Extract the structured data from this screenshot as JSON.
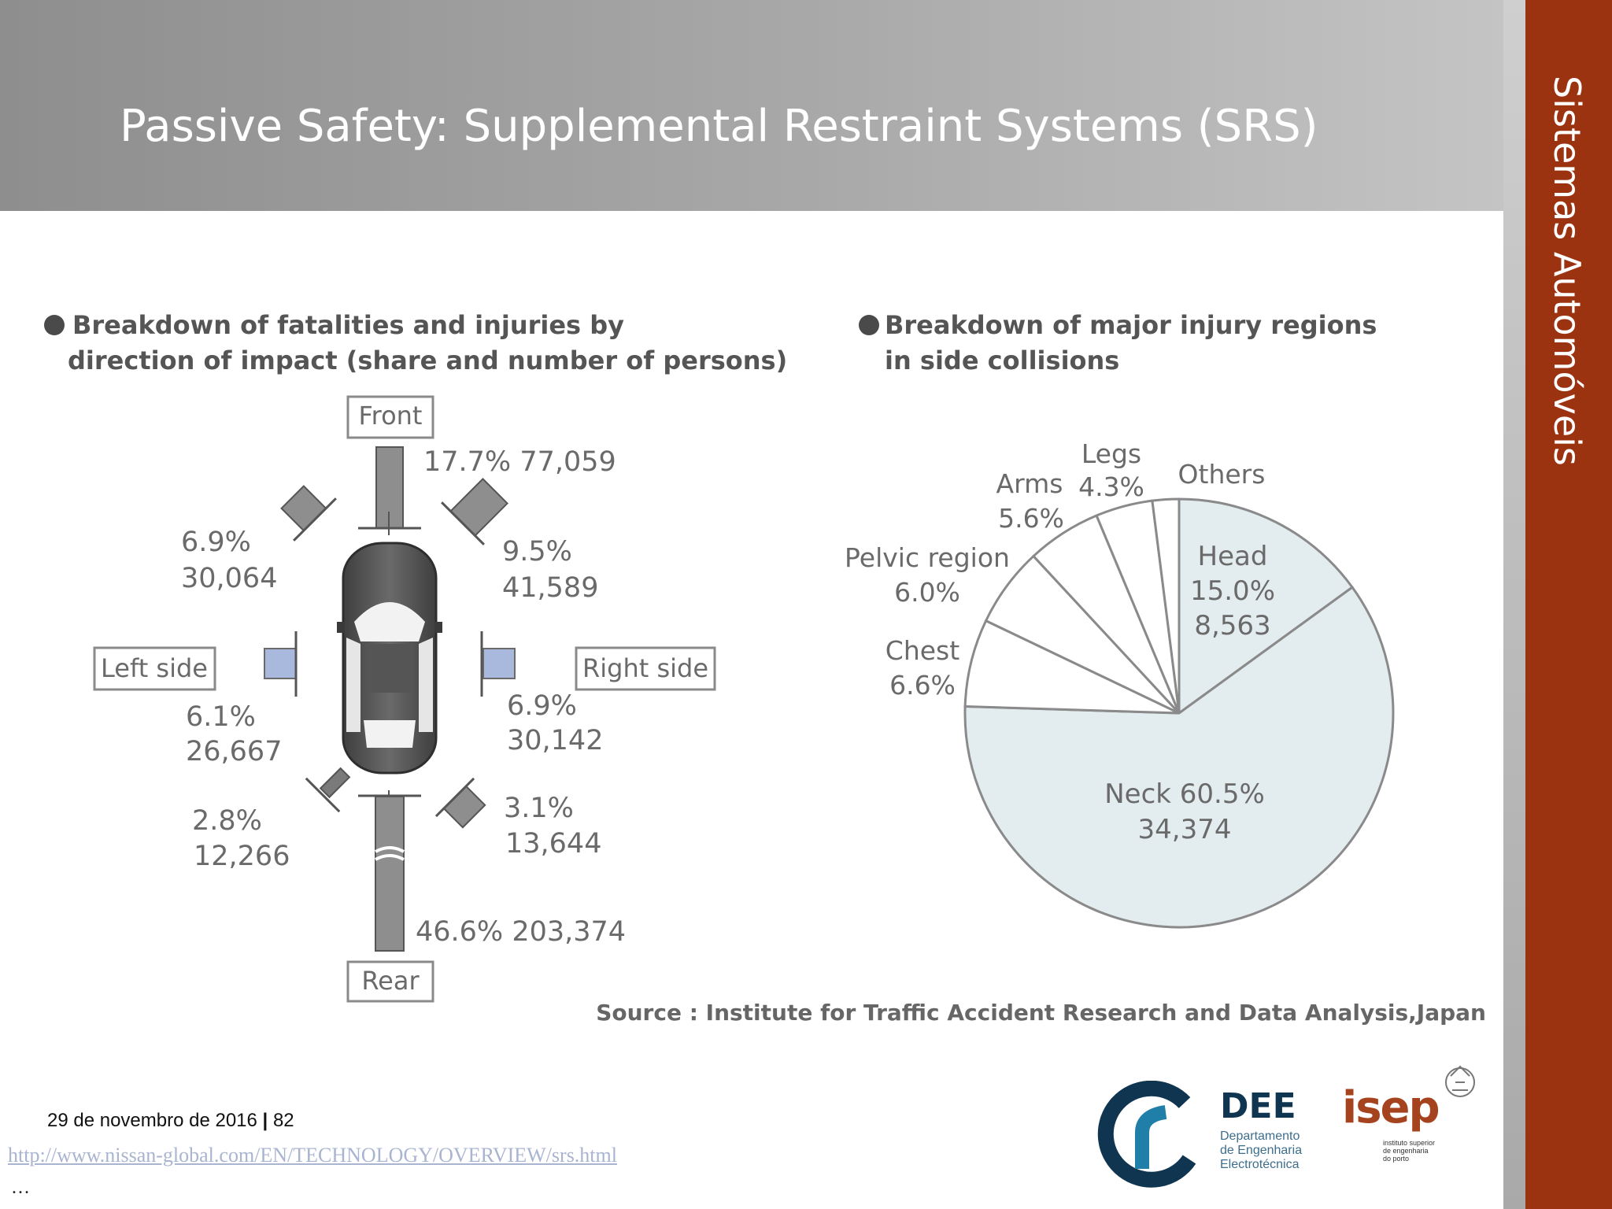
{
  "slide": {
    "title": "Passive Safety: Supplemental Restraint Systems (SRS)",
    "sidebar_label": "Sistemas Automóveis"
  },
  "colors": {
    "header_gray": "#a9a9a9",
    "sidebar_brown": "#9c3310",
    "pie_light_blue": "#e3ecef",
    "figure_text": "#6a6a6a",
    "link": "#a9b4d0",
    "dee_blue": "#0f3550",
    "isep_brown": "#a5431f"
  },
  "impact_figure": {
    "heading_line1": "Breakdown of fatalities and injuries by",
    "heading_line2": "direction of impact (share and number of persons)",
    "labels": {
      "front": "Front",
      "rear": "Rear",
      "left": "Left side",
      "right": "Right side"
    },
    "front": {
      "percent": "17.7%",
      "count": "77,059"
    },
    "front_left": {
      "percent": "6.9%",
      "count": "30,064"
    },
    "front_right": {
      "percent": "9.5%",
      "count": "41,589"
    },
    "left": {
      "percent": "6.1%",
      "count": "26,667"
    },
    "right": {
      "percent": "6.9%",
      "count": "30,142"
    },
    "rear_left": {
      "percent": "2.8%",
      "count": "12,266"
    },
    "rear_right": {
      "percent": "3.1%",
      "count": "13,644"
    },
    "rear": {
      "percent": "46.6%",
      "count": "203,374"
    }
  },
  "chart_data": {
    "type": "pie",
    "title": "Breakdown of major injury regions in  side collisions",
    "slices": [
      {
        "name": "Head",
        "value": 15.0,
        "count": "8,563",
        "highlight": true
      },
      {
        "name": "Neck",
        "value": 60.5,
        "count": "34,374",
        "highlight": true
      },
      {
        "name": "Chest",
        "value": 6.6,
        "highlight": false
      },
      {
        "name": "Pelvic region",
        "value": 6.0,
        "highlight": false
      },
      {
        "name": "Arms",
        "value": 5.6,
        "highlight": false
      },
      {
        "name": "Legs",
        "value": 4.3,
        "highlight": false
      },
      {
        "name": "Others",
        "value": 2.0,
        "highlight": false
      }
    ],
    "labels": {
      "head": {
        "name": "Head",
        "percent": "15.0%",
        "count": "8,563"
      },
      "neck": {
        "text": "Neck 60.5%",
        "count": "34,374"
      },
      "chest": {
        "name": "Chest",
        "percent": "6.6%"
      },
      "pelvic": {
        "name": "Pelvic region",
        "percent": "6.0%"
      },
      "arms": {
        "name": "Arms",
        "percent": "5.6%"
      },
      "legs": {
        "name": "Legs",
        "percent": "4.3%"
      },
      "others": {
        "name": "Others"
      }
    },
    "start": "top",
    "direction": "clockwise"
  },
  "source_note": "Source : Institute for Traffic Accident Research and Data Analysis,Japan",
  "footer": {
    "date": "29 de novembro de 2016",
    "separator": "|",
    "page_number": "82",
    "link": "http://www.nissan-global.com/EN/TECHNOLOGY/OVERVIEW/srs.html",
    "ellipsis": "…"
  },
  "logos": {
    "dee_name": "DEE",
    "dee_sub_1": "Departamento",
    "dee_sub_2": "de Engenharia",
    "dee_sub_3": "Electrotécnica",
    "isep_name": "isep",
    "isep_sub": "instituto superior de engenharia do porto"
  }
}
